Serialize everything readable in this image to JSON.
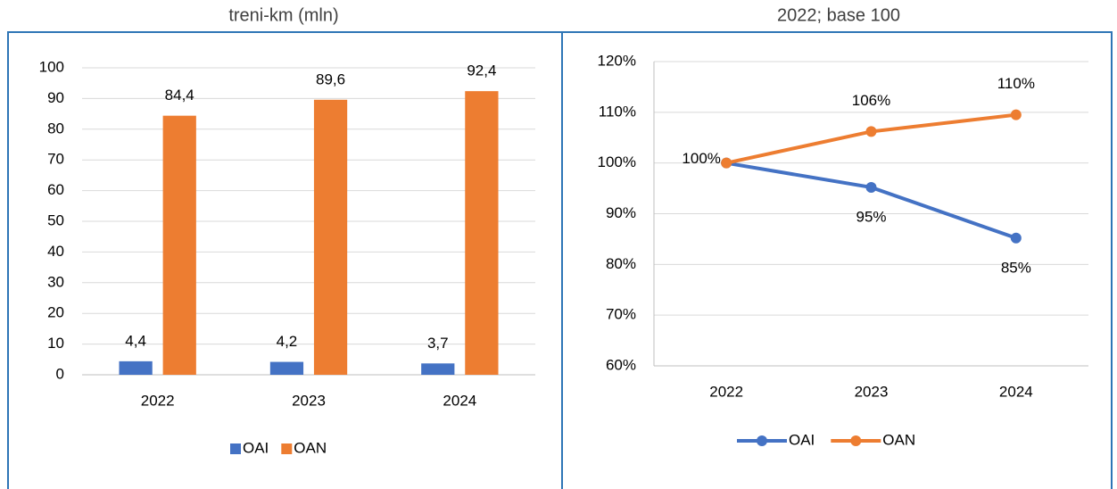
{
  "chart_data": [
    {
      "type": "bar",
      "title": "treni-km (mln)",
      "categories": [
        "2022",
        "2023",
        "2024"
      ],
      "series": [
        {
          "name": "OAI",
          "color": "#4472c4",
          "values": [
            4.4,
            4.2,
            3.7
          ],
          "value_labels": [
            "4,4",
            "4,2",
            "3,7"
          ]
        },
        {
          "name": "OAN",
          "color": "#ed7d31",
          "values": [
            84.4,
            89.6,
            92.4
          ],
          "value_labels": [
            "84,4",
            "89,6",
            "92,4"
          ]
        }
      ],
      "ylim": [
        0,
        100
      ],
      "yticks": [
        0,
        10,
        20,
        30,
        40,
        50,
        60,
        70,
        80,
        90,
        100
      ],
      "grid": true,
      "legend": "bottom"
    },
    {
      "type": "line",
      "title": "2022; base 100",
      "categories": [
        "2022",
        "2023",
        "2024"
      ],
      "series": [
        {
          "name": "OAI",
          "color": "#4472c4",
          "values": [
            100,
            95.2,
            85.2
          ],
          "value_labels": [
            "100%",
            "95%",
            "85%"
          ]
        },
        {
          "name": "OAN",
          "color": "#ed7d31",
          "values": [
            100,
            106.2,
            109.5
          ],
          "value_labels": [
            null,
            "106%",
            "110%"
          ]
        }
      ],
      "ylim": [
        60,
        120
      ],
      "yticks": [
        {
          "value": 60,
          "label": "60%"
        },
        {
          "value": 70,
          "label": "70%"
        },
        {
          "value": 80,
          "label": "80%"
        },
        {
          "value": 90,
          "label": "90%"
        },
        {
          "value": 100,
          "label": "100%"
        },
        {
          "value": 110,
          "label": "110%"
        },
        {
          "value": 120,
          "label": "120%"
        }
      ],
      "grid": true,
      "legend": "bottom"
    }
  ]
}
